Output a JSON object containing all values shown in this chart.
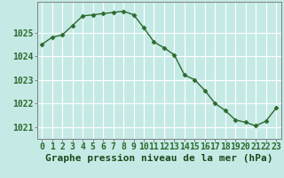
{
  "x": [
    0,
    1,
    2,
    3,
    4,
    5,
    6,
    7,
    8,
    9,
    10,
    11,
    12,
    13,
    14,
    15,
    16,
    17,
    18,
    19,
    20,
    21,
    22,
    23
  ],
  "y": [
    1024.5,
    1024.8,
    1024.9,
    1025.3,
    1025.7,
    1025.75,
    1025.8,
    1025.85,
    1025.9,
    1025.75,
    1025.2,
    1024.6,
    1024.35,
    1024.05,
    1023.2,
    1023.0,
    1022.55,
    1022.0,
    1021.7,
    1021.3,
    1021.2,
    1021.05,
    1021.25,
    1021.8
  ],
  "line_color": "#2d6a2d",
  "marker": "D",
  "marker_size": 2.5,
  "bg_color": "#c5eae6",
  "grid_color": "#ffffff",
  "xlabel": "Graphe pression niveau de la mer (hPa)",
  "xlabel_color": "#1a4a1a",
  "tick_color": "#2d6a2d",
  "ylim": [
    1020.5,
    1026.3
  ],
  "xlim": [
    -0.5,
    23.5
  ],
  "yticks": [
    1021,
    1022,
    1023,
    1024,
    1025
  ],
  "xtick_labels": [
    "0",
    "1",
    "2",
    "3",
    "4",
    "5",
    "6",
    "7",
    "8",
    "9",
    "10",
    "11",
    "12",
    "13",
    "14",
    "15",
    "16",
    "17",
    "18",
    "19",
    "20",
    "21",
    "22",
    "23"
  ],
  "xlabel_fontsize": 8,
  "tick_fontsize": 7,
  "spine_color": "#808080"
}
